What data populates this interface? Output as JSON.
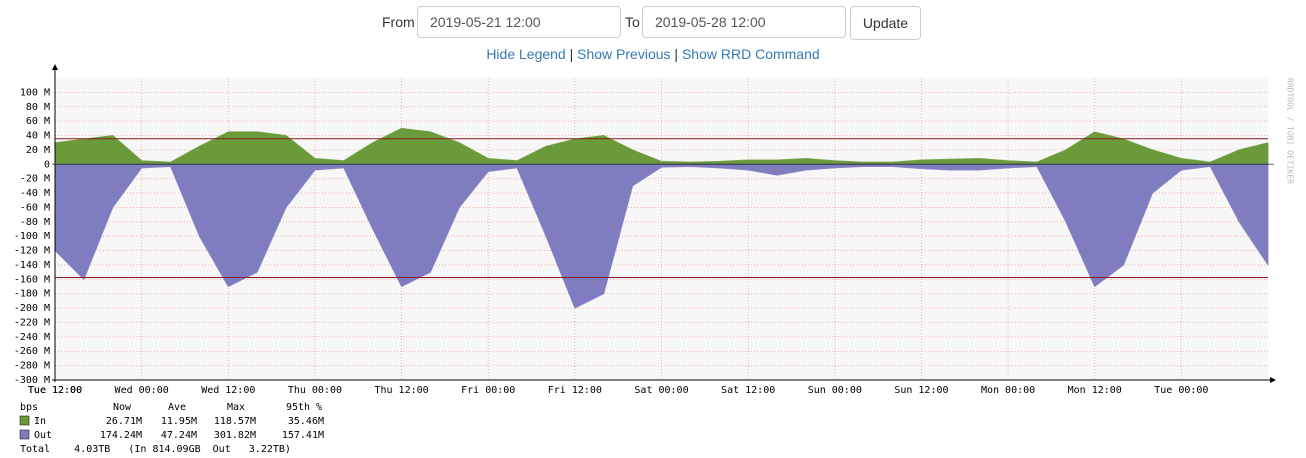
{
  "form": {
    "from_label": "From",
    "from_value": "2019-05-21 12:00",
    "to_label": "To",
    "to_value": "2019-05-28 12:00",
    "button": "Update"
  },
  "links": {
    "items": [
      "Hide Legend",
      "Show Previous",
      "Show RRD Command"
    ],
    "separator": "|"
  },
  "chart_data": {
    "type": "area",
    "watermark": "RRDTOOL / TOBI OETIKER",
    "x": [
      "Tue 12:00",
      "Tue 16:00",
      "Tue 20:00",
      "Wed 00:00",
      "Wed 04:00",
      "Wed 08:00",
      "Wed 12:00",
      "Wed 16:00",
      "Wed 20:00",
      "Thu 00:00",
      "Thu 04:00",
      "Thu 08:00",
      "Thu 12:00",
      "Thu 16:00",
      "Thu 20:00",
      "Fri 00:00",
      "Fri 04:00",
      "Fri 08:00",
      "Fri 12:00",
      "Fri 16:00",
      "Fri 20:00",
      "Sat 00:00",
      "Sat 04:00",
      "Sat 08:00",
      "Sat 12:00",
      "Sat 16:00",
      "Sat 20:00",
      "Sun 00:00",
      "Sun 04:00",
      "Sun 08:00",
      "Sun 12:00",
      "Sun 16:00",
      "Sun 20:00",
      "Mon 00:00",
      "Mon 04:00",
      "Mon 08:00",
      "Mon 12:00",
      "Mon 16:00",
      "Mon 20:00",
      "Tue 00:00",
      "Tue 04:00",
      "Tue 08:00",
      "Tue 12:00"
    ],
    "series": [
      {
        "name": "In",
        "color": "#6a9a3a",
        "values": [
          30,
          35,
          40,
          5,
          3,
          25,
          45,
          45,
          40,
          8,
          5,
          30,
          50,
          45,
          30,
          8,
          5,
          25,
          35,
          40,
          20,
          4,
          3,
          4,
          6,
          6,
          8,
          5,
          3,
          3,
          6,
          7,
          8,
          5,
          3,
          20,
          45,
          35,
          20,
          8,
          3,
          20,
          30
        ]
      },
      {
        "name": "Out",
        "color": "#7f7cc0",
        "values": [
          -120,
          -160,
          -60,
          -5,
          -3,
          -100,
          -170,
          -150,
          -60,
          -8,
          -5,
          -90,
          -170,
          -150,
          -60,
          -10,
          -5,
          -100,
          -200,
          -180,
          -30,
          -4,
          -3,
          -5,
          -8,
          -15,
          -8,
          -5,
          -3,
          -3,
          -6,
          -8,
          -8,
          -5,
          -3,
          -80,
          -170,
          -140,
          -40,
          -8,
          -3,
          -80,
          -140
        ]
      }
    ],
    "hrules": [
      {
        "value": 35.46,
        "color": "#8b1a1a"
      },
      {
        "value": -157.41,
        "color": "#8b1a1a"
      }
    ],
    "ylim": [
      -300,
      120
    ],
    "yticks": [
      {
        "value": 100,
        "label": "100 M"
      },
      {
        "value": 80,
        "label": "80 M"
      },
      {
        "value": 60,
        "label": "60 M"
      },
      {
        "value": 40,
        "label": "40 M"
      },
      {
        "value": 20,
        "label": "20 M"
      },
      0,
      {
        "value": -20,
        "label": "-20 M"
      },
      {
        "value": -40,
        "label": "-40 M"
      },
      {
        "value": -60,
        "label": "-60 M"
      },
      {
        "value": -80,
        "label": "-80 M"
      },
      {
        "value": -100,
        "label": "-100 M"
      },
      {
        "value": -120,
        "label": "-120 M"
      },
      {
        "value": -140,
        "label": "-140 M"
      },
      {
        "value": -160,
        "label": "-160 M"
      },
      {
        "value": -180,
        "label": "-180 M"
      },
      {
        "value": -200,
        "label": "-200 M"
      },
      {
        "value": -220,
        "label": "-220 M"
      },
      {
        "value": -240,
        "label": "-240 M"
      },
      {
        "value": -260,
        "label": "-260 M"
      },
      {
        "value": -280,
        "label": "-280 M"
      },
      {
        "value": -300,
        "label": "-300 M"
      }
    ],
    "xticks": [
      "Tue 12:00",
      "Wed 00:00",
      "Wed 12:00",
      "Thu 00:00",
      "Thu 12:00",
      "Fri 00:00",
      "Fri 12:00",
      "Sat 00:00",
      "Sat 12:00",
      "Sun 00:00",
      "Sun 12:00",
      "Mon 00:00",
      "Mon 12:00",
      "Tue 00:00",
      "Tue 12:00"
    ],
    "grid": true,
    "legend": {
      "header": [
        "bps",
        "Now",
        "Ave",
        "Max",
        "95th %"
      ],
      "rows": [
        [
          "In",
          "26.71M",
          "11.95M",
          "118.57M",
          "35.46M"
        ],
        [
          "Out",
          "174.24M",
          "47.24M",
          "301.82M",
          "157.41M"
        ]
      ],
      "total": "Total    4.03TB   (In 814.09GB  Out   3.22TB)"
    }
  }
}
